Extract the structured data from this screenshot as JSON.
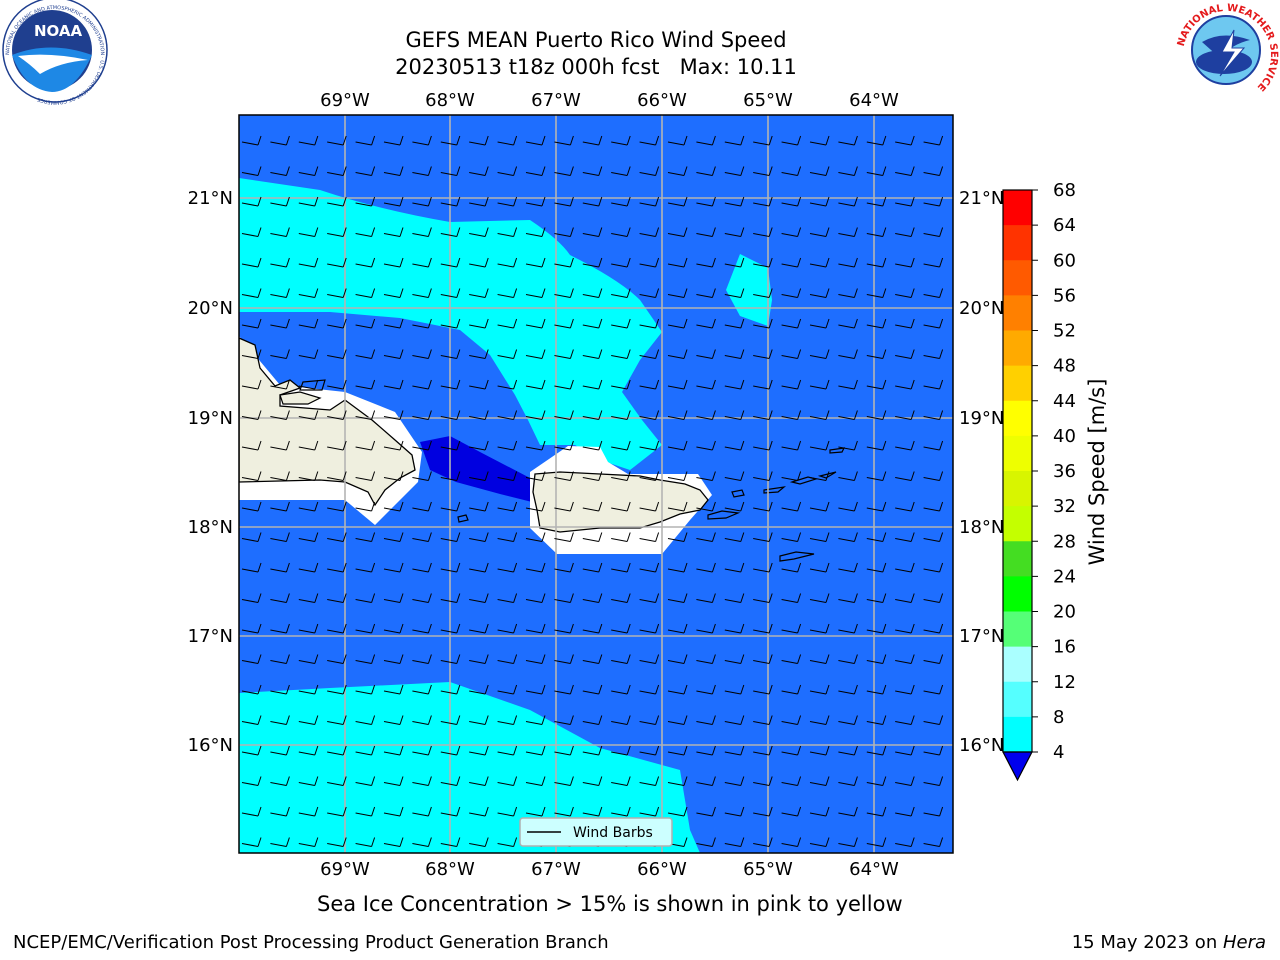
{
  "header": {
    "title_line1": "GEFS MEAN Puerto Rico Wind Speed",
    "title_line2": "20230513 t18z 000h fcst   Max: 10.11"
  },
  "map": {
    "lon_labels": [
      "69°W",
      "68°W",
      "67°W",
      "66°W",
      "65°W",
      "64°W"
    ],
    "lat_labels": [
      "21°N",
      "20°N",
      "19°N",
      "18°N",
      "17°N",
      "16°N"
    ],
    "legend_label": "Wind Barbs",
    "colors": {
      "speed_4_8": "#1e6eff",
      "speed_8_12": "#00ffff",
      "speed_below_4": "#0000e0",
      "land": "#efefdf",
      "grid": "#b4b4b4"
    }
  },
  "colorbar": {
    "label": "Wind Speed [m/s]",
    "ticks": [
      "68",
      "64",
      "60",
      "56",
      "52",
      "48",
      "44",
      "40",
      "36",
      "32",
      "28",
      "24",
      "20",
      "16",
      "12",
      "8",
      "4"
    ],
    "colors": [
      "#ff0000",
      "#ff3300",
      "#ff5a00",
      "#ff8000",
      "#ffaa00",
      "#ffd000",
      "#ffff00",
      "#eeff00",
      "#d8f500",
      "#c4ff00",
      "#44dd22",
      "#00ff00",
      "#55ff77",
      "#aaffff",
      "#55ffff",
      "#00ffff",
      "#1e6eff"
    ],
    "under_color": "#0000ee"
  },
  "footer": {
    "note": "Sea Ice Concentration > 15% is shown in pink to yellow",
    "credit": "NCEP/EMC/Verification Post Processing Product Generation Branch",
    "date": "15 May 2023 on ",
    "machine": "Hera"
  },
  "logos": {
    "noaa_text": "NOAA",
    "noaa_ring": "NATIONAL OCEANIC AND ATMOSPHERIC ADMINISTRATION · U.S. DEPARTMENT OF COMMERCE",
    "nws_ring": "NATIONAL WEATHER SERVICE"
  }
}
